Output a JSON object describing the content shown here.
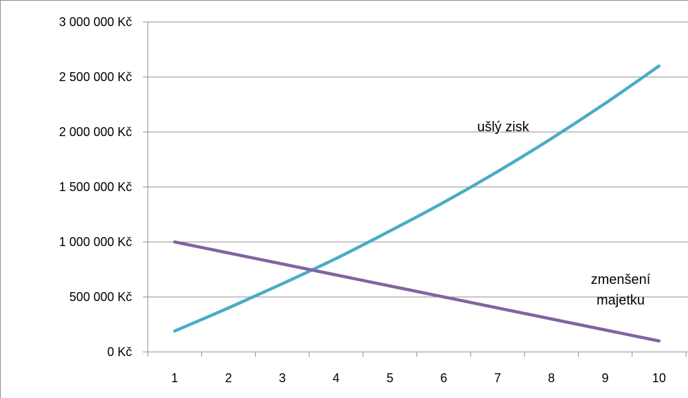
{
  "chart_data": {
    "type": "line",
    "categories": [
      "1",
      "2",
      "3",
      "4",
      "5",
      "6",
      "7",
      "8",
      "9",
      "10"
    ],
    "series": [
      {
        "color": "#4bacc6",
        "values": [
          190000,
          400000,
          620000,
          850000,
          1100000,
          1360000,
          1640000,
          1940000,
          2260000,
          2600000
        ]
      },
      {
        "color": "#8064a2",
        "values": [
          1000000,
          900000,
          800000,
          700000,
          600000,
          500000,
          400000,
          300000,
          200000,
          100000
        ]
      }
    ],
    "y_ticks": [
      {
        "value": 0,
        "label": "0 Kč"
      },
      {
        "value": 500000,
        "label": "500 000 Kč"
      },
      {
        "value": 1000000,
        "label": "1 000 000 Kč"
      },
      {
        "value": 1500000,
        "label": "1 500 000 Kč"
      },
      {
        "value": 2000000,
        "label": "2 000 000 Kč"
      },
      {
        "value": 2500000,
        "label": "2 500 000 Kč"
      },
      {
        "value": 3000000,
        "label": "3 000 000 Kč"
      }
    ],
    "ylim": [
      0,
      3000000
    ],
    "grid": true,
    "legend": "none",
    "annotations": [
      {
        "text": "ušlý zisk",
        "near_series": 0
      },
      {
        "text_lines": [
          "zmenšení",
          "majetku"
        ],
        "near_series": 1
      }
    ]
  }
}
